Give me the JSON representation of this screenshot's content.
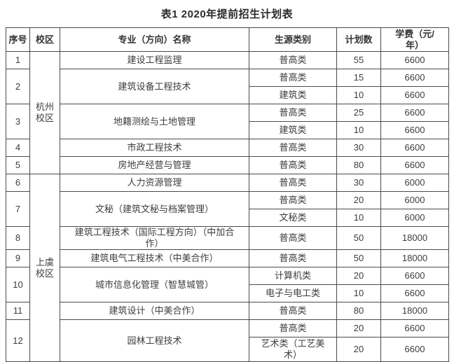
{
  "title": "表1  2020年提前招生计划表",
  "table": {
    "headers": {
      "no": "序号",
      "campus": "校区",
      "major": "专业（方向）名称",
      "category": "生源类别",
      "plan": "计划数",
      "fee": "学费（元/年）"
    },
    "campuses": [
      {
        "name": "杭州校区"
      },
      {
        "name": "上虞校区"
      }
    ],
    "rows": [
      {
        "no": "1",
        "major": "建设工程监理",
        "cats": [
          {
            "cat": "普高类",
            "plan": "55",
            "fee": "6600"
          }
        ]
      },
      {
        "no": "2",
        "major": "建筑设备工程技术",
        "cats": [
          {
            "cat": "普高类",
            "plan": "15",
            "fee": "6600"
          },
          {
            "cat": "建筑类",
            "plan": "10",
            "fee": "6600"
          }
        ]
      },
      {
        "no": "3",
        "major": "地籍测绘与土地管理",
        "cats": [
          {
            "cat": "普高类",
            "plan": "25",
            "fee": "6600"
          },
          {
            "cat": "建筑类",
            "plan": "10",
            "fee": "6600"
          }
        ]
      },
      {
        "no": "4",
        "major": "市政工程技术",
        "cats": [
          {
            "cat": "普高类",
            "plan": "30",
            "fee": "6600"
          }
        ]
      },
      {
        "no": "5",
        "major": "房地产经营与管理",
        "cats": [
          {
            "cat": "普高类",
            "plan": "80",
            "fee": "6600"
          }
        ]
      },
      {
        "no": "6",
        "major": "人力资源管理",
        "cats": [
          {
            "cat": "普高类",
            "plan": "30",
            "fee": "6000"
          }
        ]
      },
      {
        "no": "7",
        "major": "文秘（建筑文秘与档案管理）",
        "cats": [
          {
            "cat": "普高类",
            "plan": "20",
            "fee": "6000"
          },
          {
            "cat": "文秘类",
            "plan": "10",
            "fee": "6000"
          }
        ]
      },
      {
        "no": "8",
        "major": "建筑工程技术（国际工程方向）（中加合作）",
        "cats": [
          {
            "cat": "普高类",
            "plan": "50",
            "fee": "18000"
          }
        ]
      },
      {
        "no": "9",
        "major": "建筑电气工程技术（中美合作）",
        "cats": [
          {
            "cat": "普高类",
            "plan": "50",
            "fee": "18000"
          }
        ]
      },
      {
        "no": "10",
        "major": "城市信息化管理（智慧城管）",
        "cats": [
          {
            "cat": "计算机类",
            "plan": "20",
            "fee": "6600"
          },
          {
            "cat": "电子与电工类",
            "plan": "10",
            "fee": "6600"
          }
        ]
      },
      {
        "no": "11",
        "major": "建筑设计（中美合作）",
        "cats": [
          {
            "cat": "普高类",
            "plan": "80",
            "fee": "18000"
          }
        ]
      },
      {
        "no": "12",
        "major": "园林工程技术",
        "cats": [
          {
            "cat": "普高类",
            "plan": "20",
            "fee": "6600"
          },
          {
            "cat": "艺术类（工艺美术）",
            "plan": "20",
            "fee": "6600"
          }
        ]
      }
    ]
  }
}
